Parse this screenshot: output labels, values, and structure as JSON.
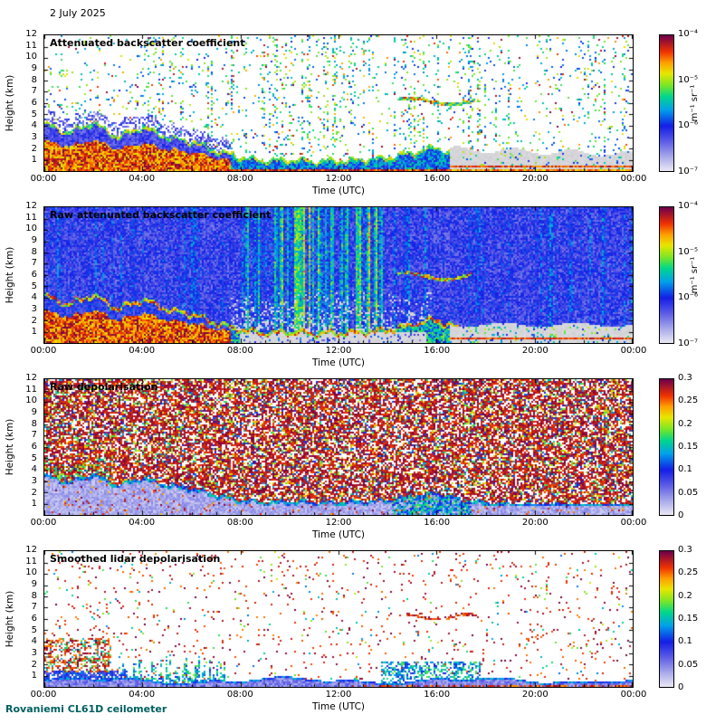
{
  "page": {
    "date": "2 July 2025",
    "footer": "Rovaniemi CL61D ceilometer",
    "footer_color": "#006060",
    "background": "#ffffff"
  },
  "colormap": {
    "positions": [
      0,
      0.1,
      0.22,
      0.33,
      0.45,
      0.55,
      0.63,
      0.72,
      0.8,
      0.88,
      1
    ],
    "colors": [
      "#e8e6f4",
      "#aaaaeb",
      "#5a5ae6",
      "#141ee6",
      "#00a0eb",
      "#00d78c",
      "#78e628",
      "#e6e600",
      "#ffa000",
      "#f03200",
      "#70004a"
    ],
    "out_of_range_grey": "#d6d6da"
  },
  "chart_data": [
    {
      "type": "heatmap",
      "title": "Attenuated backscatter coefficient",
      "xlabel": "Time (UTC)",
      "ylabel": "Height (km)",
      "x_ticks": [
        "00:00",
        "04:00",
        "08:00",
        "12:00",
        "16:00",
        "20:00",
        "00:00"
      ],
      "x_tick_hours": [
        0,
        4,
        8,
        12,
        16,
        20,
        24
      ],
      "x_range_hours": [
        0,
        24
      ],
      "y_ticks": [
        12,
        11,
        10,
        9,
        8,
        7,
        6,
        5,
        4,
        3,
        2,
        1
      ],
      "y_range_km": [
        0,
        12
      ],
      "grid": false,
      "colorbar": {
        "scale": "log",
        "range": [
          1e-07,
          0.0001
        ],
        "tick_labels": [
          "10⁻⁴",
          "10⁻⁵",
          "10⁻⁶",
          "10⁻⁷"
        ],
        "unit": "m⁻¹ sr⁻¹"
      },
      "features": [
        "Strong aerosol/cloud backscatter from surface to ~4.5 km between 00:00 and 06:00, descending to ~1 km by 08:00",
        "Shallow boundary layer near 1 km from 08:00 to 14:00, lifting to ~2 km around 15:00-16:00",
        "Elevated cloud layer near 6 km between ~14:30 and 17:30",
        "Grey attenuated region below ~2 km after 16:30 with a thin aerosol layer near 0.5 km",
        "Sparse colored noise speckle above the boundary layer"
      ]
    },
    {
      "type": "heatmap",
      "title": "Raw attenuated backscatter coefficient",
      "xlabel": "Time (UTC)",
      "ylabel": "Height (km)",
      "x_ticks": [
        "00:00",
        "04:00",
        "08:00",
        "12:00",
        "16:00",
        "20:00",
        "00:00"
      ],
      "x_tick_hours": [
        0,
        4,
        8,
        12,
        16,
        20,
        24
      ],
      "x_range_hours": [
        0,
        24
      ],
      "y_ticks": [
        12,
        11,
        10,
        9,
        8,
        7,
        6,
        5,
        4,
        3,
        2,
        1
      ],
      "y_range_km": [
        0,
        12
      ],
      "grid": false,
      "colorbar": {
        "scale": "log",
        "range": [
          1e-07,
          0.0001
        ],
        "tick_labels": [
          "10⁻⁴",
          "10⁻⁵",
          "10⁻⁶",
          "10⁻⁷"
        ],
        "unit": "m⁻¹ sr⁻¹"
      },
      "features": [
        "Dense blue background noise over the whole profile",
        "Same boundary-layer structure as the attenuated panel with strong red/orange returns below ~4 km before 06:00",
        "Vertical green/yellow noise streaks between ~08:30 and 13:30",
        "Pale low-signal region at low altitude between ~08:00 and 15:30",
        "Grey attenuated region below ~1.5 km after 16:30"
      ]
    },
    {
      "type": "heatmap",
      "title": "Raw depolarisation",
      "xlabel": "Time (UTC)",
      "ylabel": "Height (km)",
      "x_ticks": [
        "00:00",
        "04:00",
        "08:00",
        "12:00",
        "16:00",
        "20:00",
        "00:00"
      ],
      "x_tick_hours": [
        0,
        4,
        8,
        12,
        16,
        20,
        24
      ],
      "x_range_hours": [
        0,
        24
      ],
      "y_ticks": [
        12,
        11,
        10,
        9,
        8,
        7,
        6,
        5,
        4,
        3,
        2,
        1
      ],
      "y_range_km": [
        0,
        12
      ],
      "grid": false,
      "colorbar": {
        "scale": "linear",
        "range": [
          0,
          0.3
        ],
        "tick_labels": [
          "0.3",
          "0.25",
          "0.2",
          "0.15",
          "0.1",
          "0.05",
          "0"
        ],
        "unit": ""
      },
      "features": [
        "Uniform high-depolarisation speckle noise (~0.25-0.3) above the boundary layer",
        "Low-depolarisation band (<0.05) from surface up to ~1-3 km following the boundary layer",
        "Patches of high depolarisation near 2-4 km before 03:00",
        "Green/cyan depolarisation patches below ~2 km around 15:00-17:00"
      ]
    },
    {
      "type": "heatmap",
      "title": "Smoothed lidar depolarisation",
      "xlabel": "Time (UTC)",
      "ylabel": "Height (km)",
      "x_ticks": [
        "00:00",
        "04:00",
        "08:00",
        "12:00",
        "16:00",
        "20:00",
        "00:00"
      ],
      "x_tick_hours": [
        0,
        4,
        8,
        12,
        16,
        20,
        24
      ],
      "x_range_hours": [
        0,
        24
      ],
      "y_ticks": [
        12,
        11,
        10,
        9,
        8,
        7,
        6,
        5,
        4,
        3,
        2,
        1
      ],
      "y_range_km": [
        0,
        12
      ],
      "grid": false,
      "colorbar": {
        "scale": "linear",
        "range": [
          0,
          0.3
        ],
        "tick_labels": [
          "0.3",
          "0.25",
          "0.2",
          "0.15",
          "0.1",
          "0.05",
          "0"
        ],
        "unit": ""
      },
      "features": [
        "Mostly clear background with sparse high-depolarisation speckle",
        "Low-depolarisation blue surface layer below ~1 km",
        "High-depolarisation patches near 2-4 km before 03:00",
        "Green plumes below ~2.5 km between 03:00 and 07:00 and around 14:00-17:30",
        "High-depolarisation cloud streak near 6 km between 15:00 and 17:30"
      ]
    }
  ]
}
